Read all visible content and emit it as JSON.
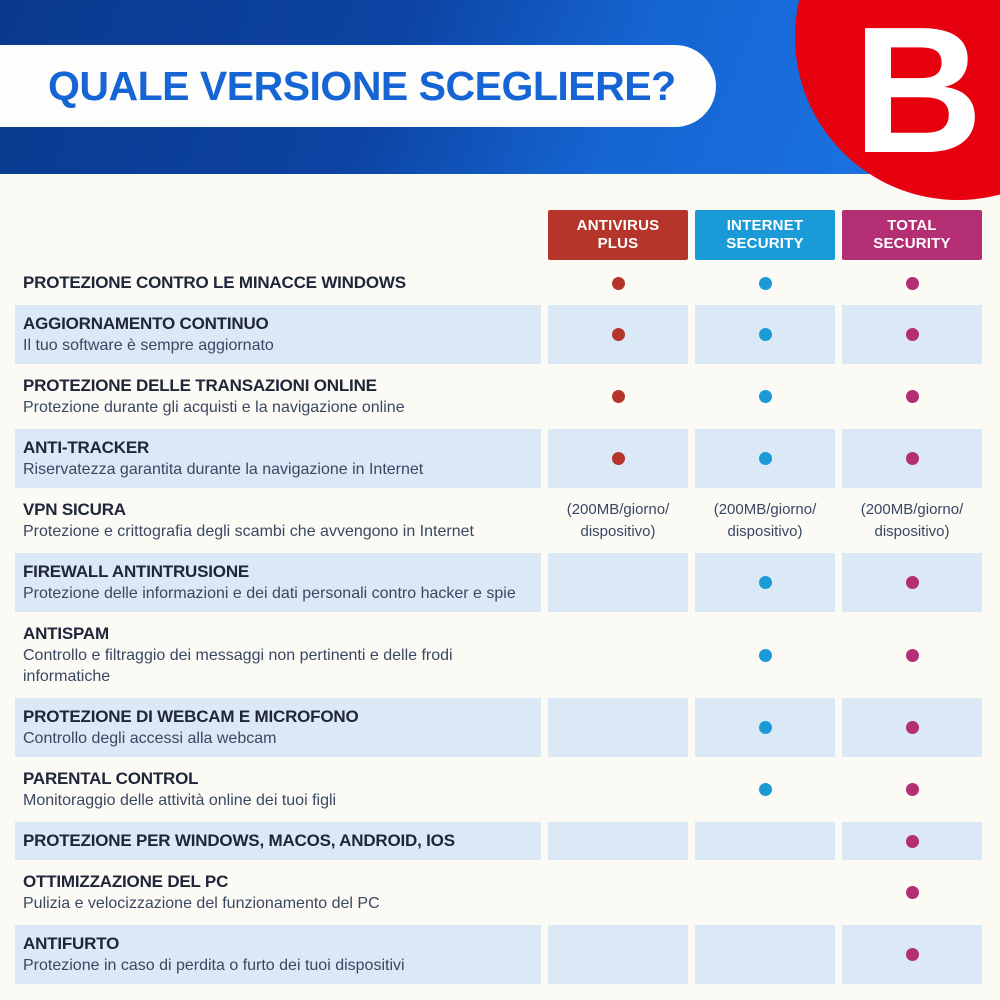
{
  "header": {
    "title": "QUALE VERSIONE SCEGLIERE?",
    "logo_letter": "B"
  },
  "columns": [
    {
      "id": "antivirus-plus",
      "label": "ANTIVIRUS\nPLUS",
      "color": "#b5352b"
    },
    {
      "id": "internet-security",
      "label": "INTERNET\nSECURITY",
      "color": "#1a9bd7"
    },
    {
      "id": "total-security",
      "label": "TOTAL\nSECURITY",
      "color": "#b42e74"
    }
  ],
  "rows": [
    {
      "title": "PROTEZIONE CONTRO LE MINACCE WINDOWS",
      "subtitle": "",
      "shaded": false,
      "cells": [
        "dot",
        "dot",
        "dot"
      ]
    },
    {
      "title": "AGGIORNAMENTO CONTINUO",
      "subtitle": "Il tuo software è sempre aggiornato",
      "shaded": true,
      "cells": [
        "dot",
        "dot",
        "dot"
      ]
    },
    {
      "title": "PROTEZIONE DELLE TRANSAZIONI ONLINE",
      "subtitle": "Protezione durante gli acquisti e la navigazione online",
      "shaded": false,
      "cells": [
        "dot",
        "dot",
        "dot"
      ]
    },
    {
      "title": "ANTI-TRACKER",
      "subtitle": "Riservatezza garantita durante la navigazione in Internet",
      "shaded": true,
      "cells": [
        "dot",
        "dot",
        "dot"
      ]
    },
    {
      "title": "VPN SICURA",
      "subtitle": "Protezione e crittografia degli scambi che avvengono in Internet",
      "shaded": false,
      "cells": [
        "note",
        "note",
        "note"
      ],
      "note": "(200MB/giorno/\ndispositivo)"
    },
    {
      "title": "FIREWALL ANTINTRUSIONE",
      "subtitle": "Protezione delle informazioni e dei dati personali contro hacker e spie",
      "shaded": true,
      "cells": [
        "",
        "dot",
        "dot"
      ]
    },
    {
      "title": "ANTISPAM",
      "subtitle": "Controllo e filtraggio dei messaggi non pertinenti e delle frodi\ninformatiche",
      "shaded": false,
      "cells": [
        "",
        "dot",
        "dot"
      ]
    },
    {
      "title": "PROTEZIONE DI WEBCAM E MICROFONO",
      "subtitle": "Controllo degli accessi alla webcam",
      "shaded": true,
      "cells": [
        "",
        "dot",
        "dot"
      ]
    },
    {
      "title": "PARENTAL CONTROL",
      "subtitle": "Monitoraggio delle attività online dei tuoi figli",
      "shaded": false,
      "cells": [
        "",
        "dot",
        "dot"
      ]
    },
    {
      "title": "PROTEZIONE PER WINDOWS, MACOS, ANDROID, IOS",
      "subtitle": "",
      "shaded": true,
      "cells": [
        "",
        "",
        "dot"
      ]
    },
    {
      "title": "OTTIMIZZAZIONE DEL PC",
      "subtitle": "Pulizia e velocizzazione del funzionamento del PC",
      "shaded": false,
      "cells": [
        "",
        "",
        "dot"
      ]
    },
    {
      "title": "ANTIFURTO",
      "subtitle": "Protezione in caso di perdita o furto dei tuoi dispositivi",
      "shaded": true,
      "cells": [
        "",
        "",
        "dot"
      ]
    }
  ],
  "colors": {
    "banner_dark_blue": "#0a3a8e",
    "banner_light_blue": "#1c77e6",
    "title_blue": "#1565d4",
    "logo_red": "#e7000e",
    "row_shade": "#dbe8f6",
    "title_text": "#20263a",
    "subtitle_text": "#3a4763"
  }
}
